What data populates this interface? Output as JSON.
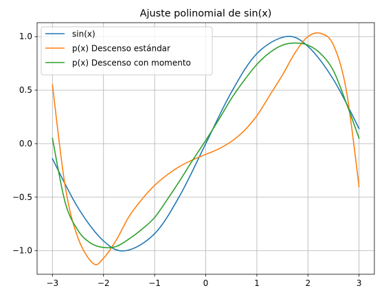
{
  "chart_data": {
    "type": "line",
    "title": "Ajuste polinomial de sin(x)",
    "xlabel": "",
    "ylabel": "",
    "xlim": [
      -3.3,
      3.3
    ],
    "ylim": [
      -1.22,
      1.13
    ],
    "grid": true,
    "legend_position": "top-left",
    "x_ticks": [
      -3,
      -2,
      -1,
      0,
      1,
      2,
      3
    ],
    "x_tick_labels": [
      "−3",
      "−2",
      "−1",
      "0",
      "1",
      "2",
      "3"
    ],
    "y_ticks": [
      -1.0,
      -0.5,
      0.0,
      0.5,
      1.0
    ],
    "y_tick_labels": [
      "−1.0",
      "−0.5",
      "0.0",
      "0.5",
      "1.0"
    ],
    "series": [
      {
        "name": "sin(x)",
        "color": "#1f77b4",
        "x": [
          -3.0,
          -2.5,
          -2.0,
          -1.5708,
          -1.0,
          -0.5,
          0.0,
          0.5,
          1.0,
          1.5708,
          2.0,
          2.5,
          3.0
        ],
        "y": [
          -0.141,
          -0.598,
          -0.909,
          -1.0,
          -0.841,
          -0.479,
          0.0,
          0.479,
          0.841,
          1.0,
          0.909,
          0.598,
          0.141
        ]
      },
      {
        "name": "p(x) Descenso estándar",
        "color": "#ff7f0e",
        "x": [
          -3.0,
          -2.75,
          -2.5,
          -2.2,
          -2.0,
          -1.75,
          -1.5,
          -1.25,
          -1.0,
          -0.75,
          -0.5,
          -0.25,
          0.0,
          0.25,
          0.5,
          0.75,
          1.0,
          1.25,
          1.5,
          1.75,
          2.0,
          2.25,
          2.5,
          2.75,
          3.0
        ],
        "y": [
          0.55,
          -0.4,
          -0.88,
          -1.12,
          -1.07,
          -0.9,
          -0.68,
          -0.52,
          -0.39,
          -0.29,
          -0.21,
          -0.15,
          -0.1,
          -0.05,
          0.02,
          0.12,
          0.26,
          0.45,
          0.64,
          0.85,
          1.0,
          1.03,
          0.92,
          0.5,
          -0.4
        ]
      },
      {
        "name": "p(x) Descenso con momento",
        "color": "#2ca02c",
        "x": [
          -3.0,
          -2.75,
          -2.5,
          -2.25,
          -2.0,
          -1.75,
          -1.5,
          -1.25,
          -1.0,
          -0.75,
          -0.5,
          -0.25,
          0.0,
          0.25,
          0.5,
          0.75,
          1.0,
          1.25,
          1.5,
          1.75,
          2.0,
          2.25,
          2.5,
          2.75,
          3.0
        ],
        "y": [
          0.05,
          -0.55,
          -0.81,
          -0.93,
          -0.97,
          -0.96,
          -0.89,
          -0.8,
          -0.69,
          -0.52,
          -0.34,
          -0.15,
          0.03,
          0.22,
          0.42,
          0.59,
          0.74,
          0.85,
          0.92,
          0.94,
          0.92,
          0.84,
          0.68,
          0.38,
          0.05
        ]
      }
    ]
  }
}
